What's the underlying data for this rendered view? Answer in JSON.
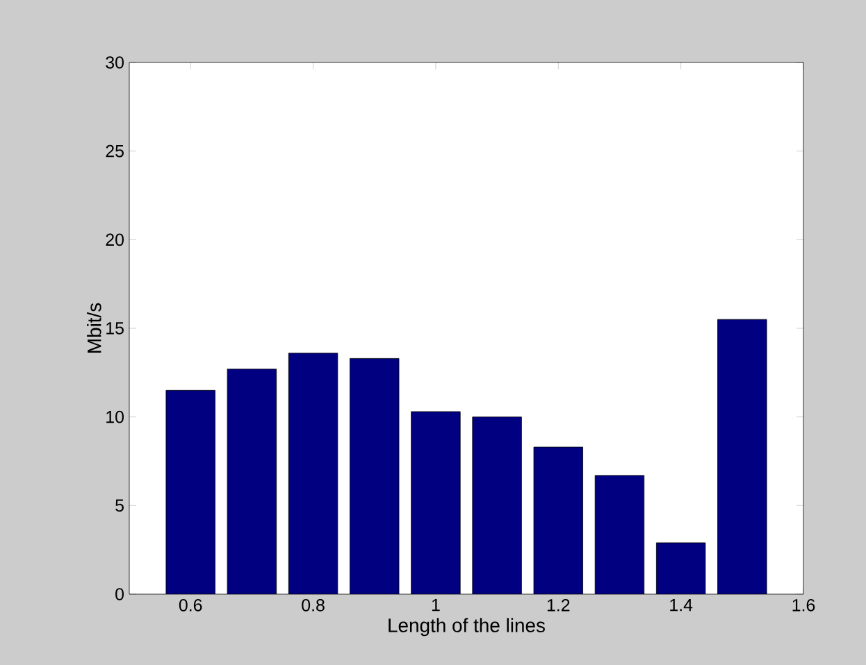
{
  "chart_data": {
    "type": "bar",
    "xlabel": "Length of the lines",
    "ylabel": "Mbit/s",
    "x": [
      0.6,
      0.7,
      0.8,
      0.9,
      1.0,
      1.1,
      1.2,
      1.3,
      1.4,
      1.5
    ],
    "values": [
      11.5,
      12.7,
      13.6,
      13.3,
      10.3,
      10.0,
      8.3,
      6.7,
      2.9,
      15.5
    ],
    "color": "#000080",
    "xlim": [
      0.5,
      1.6
    ],
    "ylim": [
      0,
      30
    ],
    "xticks": [
      0.6,
      0.8,
      1,
      1.2,
      1.4,
      1.6
    ],
    "yticks": [
      0,
      5,
      10,
      15,
      20,
      25,
      30
    ]
  }
}
